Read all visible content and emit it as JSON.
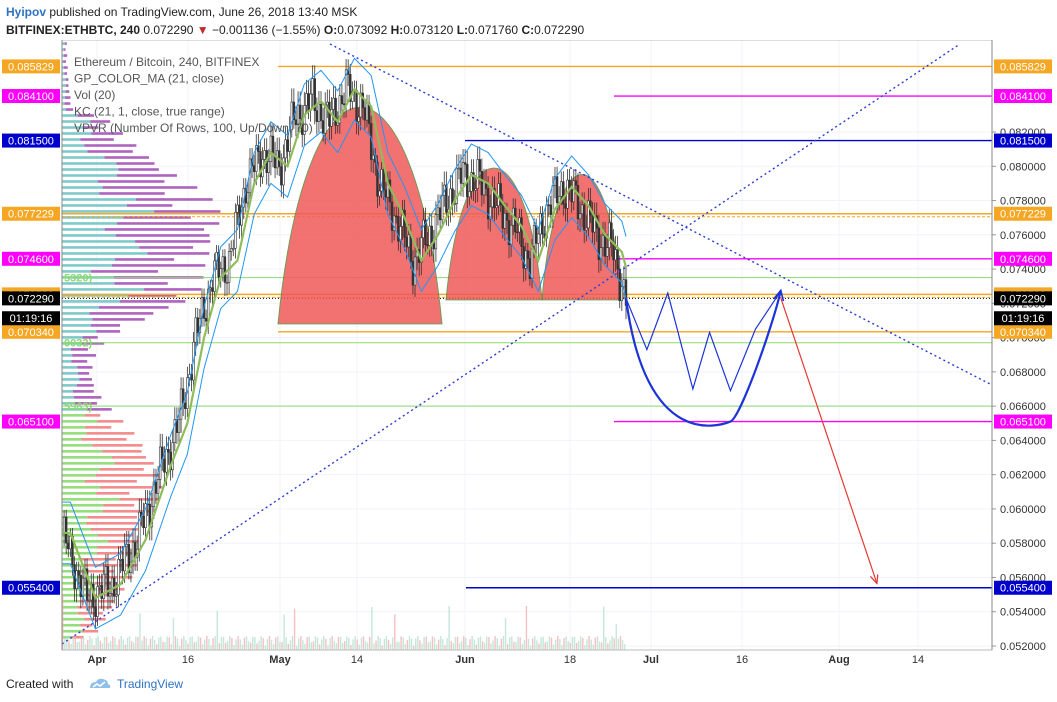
{
  "header": {
    "author": "Hyipov",
    "published_text": "published on TradingView.com, June 26, 2018 13:40 MSK",
    "symbol": "BITFINEX:ETHBTC, 240",
    "last": "0.072290",
    "change": "−0.001136 (−1.55%)",
    "o_label": "O:",
    "o_value": "0.073092",
    "h_label": "H:",
    "h_value": "0.073120",
    "l_label": "L:",
    "l_value": "0.071760",
    "c_label": "C:",
    "c_value": "0.072290"
  },
  "legend": [
    "Ethereum / Bitcoin, 240, BITFINEX",
    "GP_COLOR_MA (21, close)",
    "Vol (20)",
    "KC (21, 1, close, true range)",
    "VPVR (Number Of Rows, 100, Up/Down, 70)"
  ],
  "colors": {
    "orange": "#f5a623",
    "magenta": "#ff00ff",
    "navy": "#0000cc",
    "black": "#000000",
    "pattern_fill": "#f05a5a",
    "projection": "#1c34d8",
    "down_arrow": "#e53935",
    "trendline": "#2a3bd6",
    "ma": "#8fbc5a",
    "keltner": "#2196f3",
    "vp_up": "#71c3c3",
    "vp_down": "#a552b8",
    "vp_up_low": "#8bd96f",
    "vp_down_low": "#f28080"
  },
  "chart_data": {
    "type": "candlestick",
    "title": "Ethereum / Bitcoin, 240, BITFINEX",
    "ylim": [
      0.0515,
      0.0875
    ],
    "y_ticks": [
      "0.052000",
      "0.054000",
      "0.056000",
      "0.058000",
      "0.060000",
      "0.062000",
      "0.064000",
      "0.066000",
      "0.068000",
      "0.070000",
      "0.072000",
      "0.074000",
      "0.076000",
      "0.078000",
      "0.080000",
      "0.082000"
    ],
    "x_ticks": [
      "Apr",
      "16",
      "May",
      "14",
      "Jun",
      "18",
      "Jul",
      "16",
      "Aug",
      "14"
    ],
    "price_path": [
      [
        0,
        0.0586
      ],
      [
        6,
        0.0548
      ],
      [
        12,
        0.0556
      ],
      [
        18,
        0.0582
      ],
      [
        24,
        0.0625
      ],
      [
        28,
        0.065
      ],
      [
        32,
        0.07
      ],
      [
        36,
        0.0735
      ],
      [
        40,
        0.0745
      ],
      [
        44,
        0.079
      ],
      [
        48,
        0.0808
      ],
      [
        52,
        0.08
      ],
      [
        56,
        0.083
      ],
      [
        60,
        0.0838
      ],
      [
        64,
        0.0826
      ],
      [
        68,
        0.0845
      ],
      [
        72,
        0.0835
      ],
      [
        76,
        0.079
      ],
      [
        80,
        0.077
      ],
      [
        84,
        0.0745
      ],
      [
        88,
        0.076
      ],
      [
        92,
        0.078
      ],
      [
        96,
        0.0795
      ],
      [
        100,
        0.079
      ],
      [
        104,
        0.0777
      ],
      [
        108,
        0.0765
      ],
      [
        112,
        0.0745
      ],
      [
        116,
        0.0775
      ],
      [
        120,
        0.0788
      ],
      [
        124,
        0.0777
      ],
      [
        128,
        0.076
      ],
      [
        132,
        0.075
      ],
      [
        135,
        0.0723
      ]
    ],
    "horizontal_levels": [
      {
        "value": "0.085829",
        "color": "orange"
      },
      {
        "value": "0.084100",
        "color": "magenta"
      },
      {
        "value": "0.081500",
        "color": "navy"
      },
      {
        "value": "0.077229",
        "color": "orange"
      },
      {
        "value": "0.074600",
        "color": "magenta"
      },
      {
        "value": "0.072523",
        "color": "orange"
      },
      {
        "value": "0.072290",
        "color": "black"
      },
      {
        "value": "0.070340",
        "color": "orange"
      },
      {
        "value": "0.065100",
        "color": "magenta"
      },
      {
        "value": "0.055400",
        "color": "navy"
      }
    ],
    "countdown": "01:19:16",
    "vp_poc_labels": [
      "5320)",
      "0032)",
      "5963)"
    ],
    "projection_path": [
      [
        135,
        0.0723
      ],
      [
        140,
        0.0693
      ],
      [
        145,
        0.0726
      ],
      [
        151,
        0.067
      ],
      [
        155,
        0.0703
      ],
      [
        160,
        0.0669
      ],
      [
        166,
        0.0705
      ],
      [
        172,
        0.0727
      ]
    ],
    "cup_bottom": 0.0651,
    "target_arrow": [
      [
        172,
        0.0727
      ],
      [
        195,
        0.0557
      ]
    ]
  },
  "footer": {
    "created_with": "Created with",
    "brand": "TradingView"
  }
}
